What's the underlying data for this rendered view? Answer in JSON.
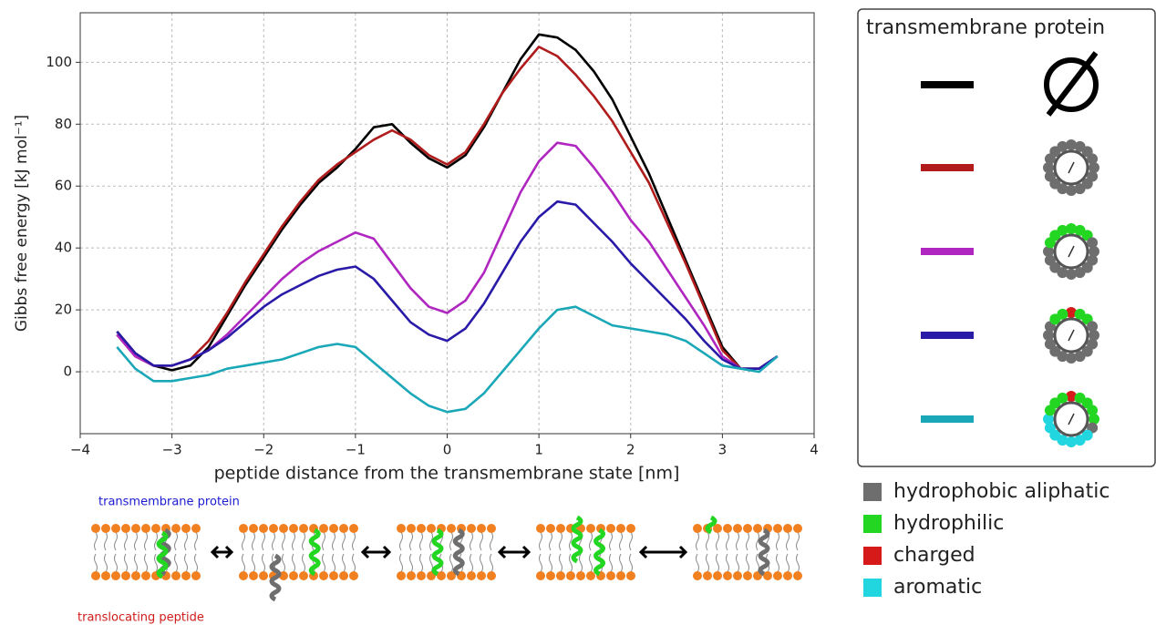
{
  "chart_data": {
    "type": "line",
    "x": [
      -3.6,
      -3.4,
      -3.2,
      -3.0,
      -2.8,
      -2.6,
      -2.4,
      -2.2,
      -2.0,
      -1.8,
      -1.6,
      -1.4,
      -1.2,
      -1.0,
      -0.8,
      -0.6,
      -0.4,
      -0.2,
      0,
      0.2,
      0.4,
      0.6,
      0.8,
      1.0,
      1.2,
      1.4,
      1.6,
      1.8,
      2.0,
      2.2,
      2.4,
      2.6,
      2.8,
      3.0,
      3.2,
      3.4,
      3.6
    ],
    "series": [
      {
        "color": "#000000",
        "values": [
          13,
          6,
          2,
          0.5,
          2,
          8,
          18,
          28,
          37,
          46,
          54,
          61,
          66,
          72,
          79,
          80,
          74,
          69,
          66,
          70,
          79,
          90,
          101,
          109,
          108,
          104,
          97,
          88,
          76,
          64,
          50,
          36,
          22,
          8,
          1,
          1,
          5
        ]
      },
      {
        "color": "#b01c1c",
        "values": [
          12,
          5,
          2,
          2,
          4,
          10,
          19,
          29,
          38,
          47,
          55,
          62,
          67,
          71,
          75,
          78,
          75,
          70,
          67,
          71,
          80,
          90,
          98,
          105,
          102,
          96,
          89,
          81,
          71,
          61,
          48,
          35,
          21,
          7,
          1,
          1,
          5
        ]
      },
      {
        "color": "#b026c0",
        "values": [
          12,
          5,
          2,
          2,
          4,
          7,
          12,
          18,
          24,
          30,
          35,
          39,
          42,
          45,
          43,
          35,
          27,
          21,
          19,
          23,
          32,
          45,
          58,
          68,
          74,
          73,
          66,
          58,
          49,
          42,
          33,
          24,
          15,
          5,
          1,
          1,
          5
        ]
      },
      {
        "color": "#2a1aa8",
        "values": [
          13,
          6,
          2,
          2,
          4,
          7,
          11,
          16,
          21,
          25,
          28,
          31,
          33,
          34,
          30,
          23,
          16,
          12,
          10,
          14,
          22,
          32,
          42,
          50,
          55,
          54,
          48,
          42,
          35,
          29,
          23,
          17,
          10,
          4,
          1,
          1,
          5
        ]
      },
      {
        "color": "#1aa8b8",
        "values": [
          8,
          1,
          -3,
          -3,
          -2,
          -1,
          1,
          2,
          3,
          4,
          6,
          8,
          9,
          8,
          3,
          -2,
          -7,
          -11,
          -13,
          -12,
          -7,
          0,
          7,
          14,
          20,
          21,
          18,
          15,
          14,
          13,
          12,
          10,
          6,
          2,
          1,
          0,
          5
        ]
      }
    ],
    "xlabel": "peptide distance from the transmembrane state [nm]",
    "ylabel": "Gibbs free energy [kJ mol⁻¹]",
    "xlim": [
      -4,
      4
    ],
    "ylim": [
      -20,
      116
    ],
    "xticks": [
      {
        "value": -4,
        "label": "−4"
      },
      {
        "value": -3,
        "label": "−3"
      },
      {
        "value": -2,
        "label": "−2"
      },
      {
        "value": -1,
        "label": "−1"
      },
      0,
      1,
      2,
      3,
      4
    ],
    "yticks": [
      0,
      20,
      40,
      60,
      80,
      100
    ],
    "grid": true,
    "legend_title": "transmembrane protein"
  },
  "residue_legend": [
    {
      "label": "hydrophobic aliphatic",
      "color": "#6e6e6e"
    },
    {
      "label": "hydrophilic",
      "color": "#22d622"
    },
    {
      "label": "charged",
      "color": "#d61a1a"
    },
    {
      "label": "aromatic",
      "color": "#22d6e0"
    }
  ],
  "schematic": {
    "protein_label": "transmembrane protein",
    "peptide_label": "translocating peptide"
  }
}
